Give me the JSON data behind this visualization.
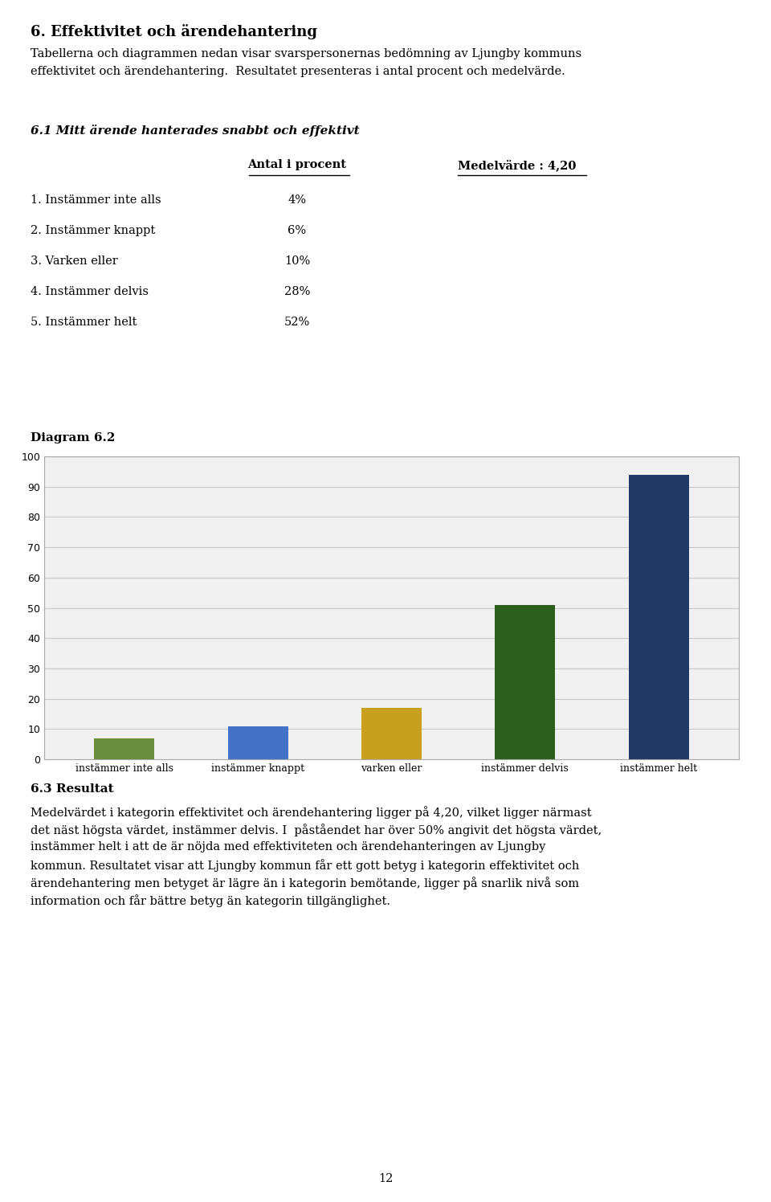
{
  "page_title": "6. Effektivitet och ärendehantering",
  "page_subtitle_line1": "Tabellerna och diagrammen nedan visar svarspersonernas bedömning av Ljungby kommuns",
  "page_subtitle_line2": "effektivitet och ärendehantering.  Resultatet presenteras i antal procent och medelvärde.",
  "section_title": "6.1 Mitt ärende hanterades snabbt och effektivt",
  "col_header1": "Antal i procent",
  "col_header2": "Medelvärde : 4,20",
  "table_rows": [
    {
      "label": "1. Instämmer inte alls",
      "value": "4%"
    },
    {
      "label": "2. Instämmer knappt",
      "value": "6%"
    },
    {
      "label": "3. Varken eller",
      "value": "10%"
    },
    {
      "label": "4. Instämmer delvis",
      "value": "28%"
    },
    {
      "label": "5. Instämmer helt",
      "value": "52%"
    }
  ],
  "diagram_label": "Diagram 6.2",
  "categories": [
    "instämmer inte alls",
    "instämmer knappt",
    "varken eller",
    "instämmer delvis",
    "instämmer helt"
  ],
  "values": [
    7,
    11,
    17,
    51,
    94
  ],
  "bar_colors": [
    "#6b8e3e",
    "#4472c4",
    "#c8a020",
    "#2e5e1e",
    "#1f3864"
  ],
  "ylim": [
    0,
    100
  ],
  "yticks": [
    0,
    10,
    20,
    30,
    40,
    50,
    60,
    70,
    80,
    90,
    100
  ],
  "grid_color": "#c8c8c8",
  "background_color": "#ffffff",
  "chart_bg": "#f0f0f0",
  "result_title": "6.3 Resultat",
  "result_line1": "Medelvärdet i kategorin effektivitet och ärendehantering ligger på 4,20, vilket ligger närmast",
  "result_line2": "det näst högsta värdet, instämmer delvis. I  påståendet har över 50% angivit det högsta värdet,",
  "result_line3": "instämmer helt i att de är nöjda med effektiviteten och ärendehanteringen av Ljungby",
  "result_line4": "kommun. Resultatet visar att Ljungby kommun får ett gott betyg i kategorin effektivitet och",
  "result_line5": "ärendehantering men betyget är lägre än i kategorin bemötande, ligger på snarlik nivå som",
  "result_line6": "information och får bättre betyg än kategorin tillgänglighet.",
  "page_number": "12"
}
